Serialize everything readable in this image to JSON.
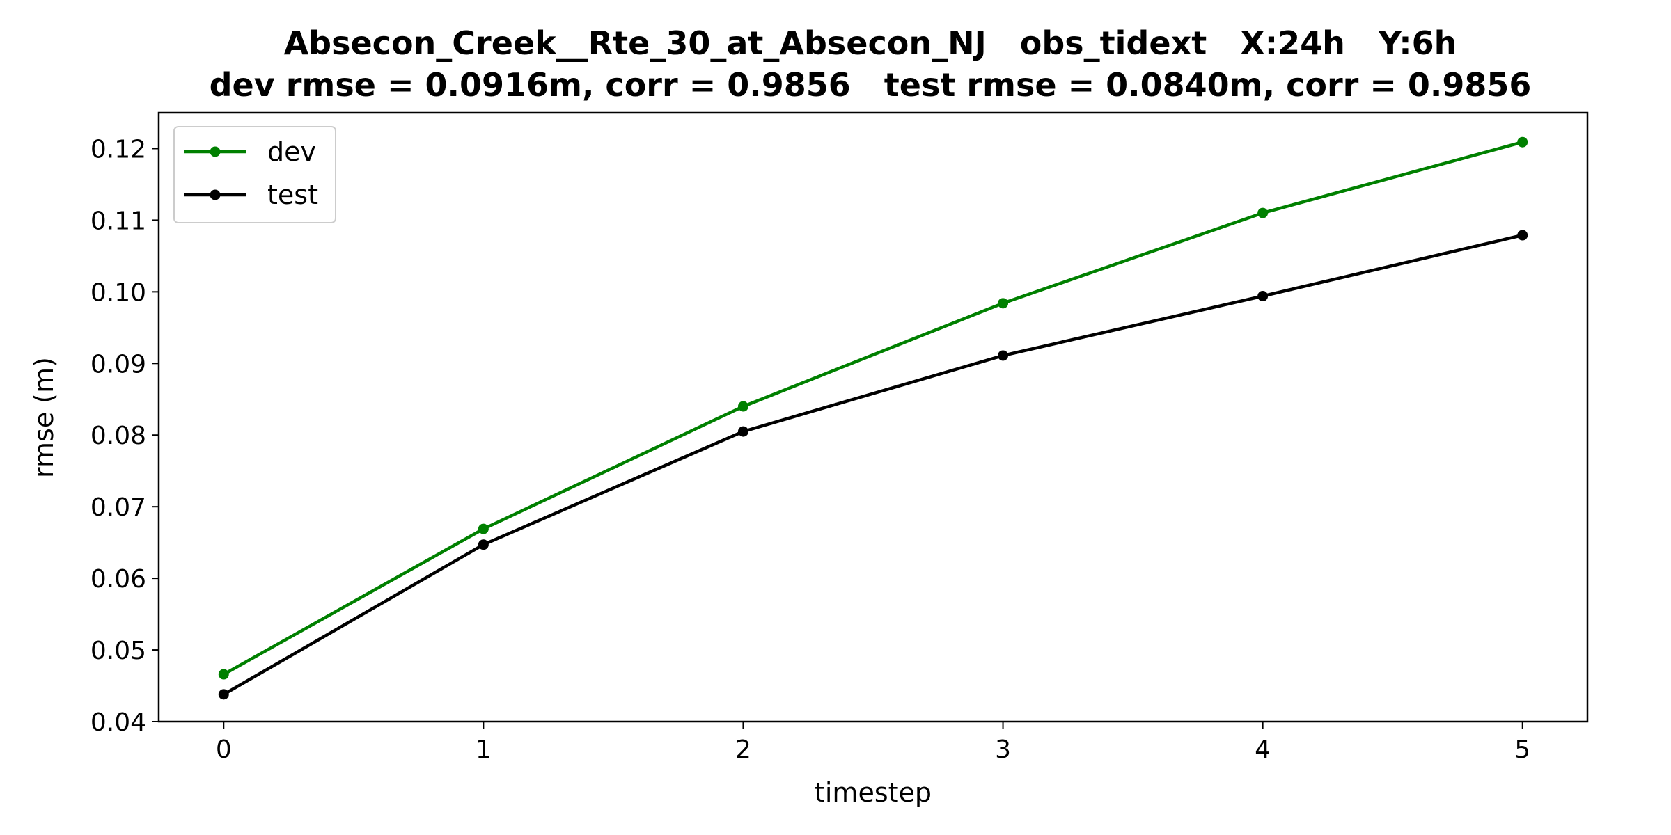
{
  "chart_data": {
    "type": "line",
    "title": "Absecon_Creek__Rte_30_at_Absecon_NJ   obs_tidext   X:24h   Y:6h",
    "subtitle": "dev rmse = 0.0916m, corr = 0.9856   test rmse = 0.0840m, corr = 0.9856",
    "xlabel": "timestep",
    "ylabel": "rmse (m)",
    "x": [
      0,
      1,
      2,
      3,
      4,
      5
    ],
    "x_tick_labels": [
      "0",
      "1",
      "2",
      "3",
      "4",
      "5"
    ],
    "y_tick_values": [
      0.04,
      0.05,
      0.06,
      0.07,
      0.08,
      0.09,
      0.1,
      0.11,
      0.12
    ],
    "y_tick_labels": [
      "0.04",
      "0.05",
      "0.06",
      "0.07",
      "0.08",
      "0.09",
      "0.10",
      "0.11",
      "0.12"
    ],
    "xlim": [
      -0.25,
      5.25
    ],
    "ylim": [
      0.04,
      0.125
    ],
    "grid": false,
    "legend_position": "upper-left",
    "series": [
      {
        "name": "dev",
        "color": "#008000",
        "marker": "circle",
        "values": [
          0.0466,
          0.0669,
          0.084,
          0.0984,
          0.111,
          0.1209
        ]
      },
      {
        "name": "test",
        "color": "#000000",
        "marker": "circle",
        "values": [
          0.0438,
          0.0647,
          0.0805,
          0.0911,
          0.0994,
          0.1079
        ]
      }
    ]
  }
}
